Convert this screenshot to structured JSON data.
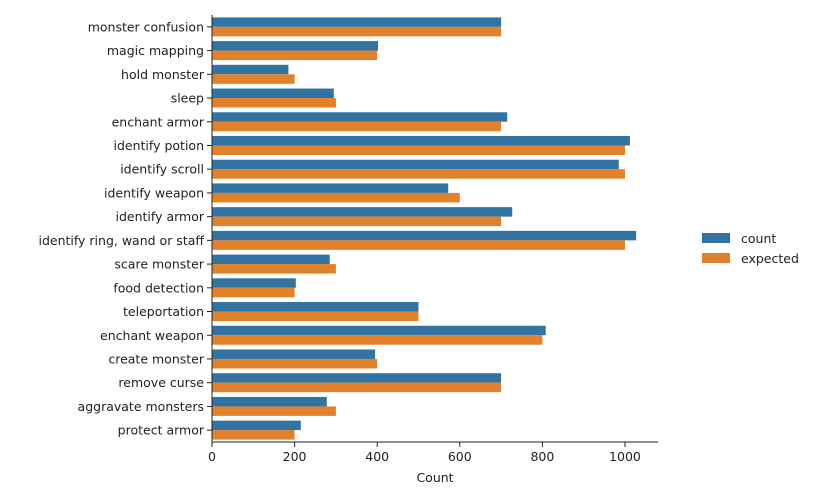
{
  "chart_data": {
    "type": "bar",
    "orientation": "horizontal",
    "categories": [
      "monster confusion",
      "magic mapping",
      "hold monster",
      "sleep",
      "enchant armor",
      "identify potion",
      "identify scroll",
      "identify weapon",
      "identify armor",
      "identify ring, wand or staff",
      "scare monster",
      "food detection",
      "teleportation",
      "enchant weapon",
      "create monster",
      "remove curse",
      "aggravate monsters",
      "protect armor"
    ],
    "series": [
      {
        "name": "count",
        "color": "#3274a1",
        "values": [
          700,
          402,
          185,
          295,
          715,
          1012,
          985,
          572,
          727,
          1027,
          285,
          203,
          500,
          808,
          395,
          700,
          278,
          215
        ]
      },
      {
        "name": "expected",
        "color": "#e1812c",
        "values": [
          700,
          400,
          200,
          300,
          700,
          1000,
          1000,
          600,
          700,
          1000,
          300,
          200,
          500,
          800,
          400,
          700,
          300,
          200
        ]
      }
    ],
    "xlabel": "Count",
    "ylabel": "",
    "xlim": [
      0,
      1080
    ],
    "xticks": [
      0,
      200,
      400,
      600,
      800,
      1000
    ],
    "grid": false,
    "legend_position": "right"
  }
}
